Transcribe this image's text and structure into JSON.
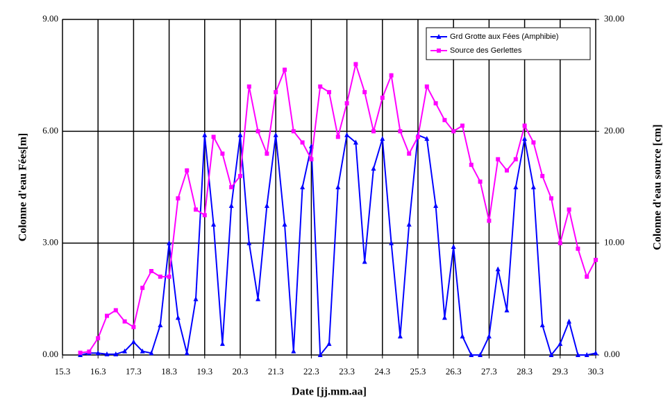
{
  "chart_data": {
    "type": "line",
    "xlabel": "Date [jj.mm.aa]",
    "ylabel": "Colonne d'eau Fées[m]",
    "y2label": "Colonne d'eau source [cm]",
    "xlim": [
      15,
      30
    ],
    "xticks": [
      {
        "value": 15,
        "label": "15.3"
      },
      {
        "value": 16,
        "label": "16.3"
      },
      {
        "value": 17,
        "label": "17.3"
      },
      {
        "value": 18,
        "label": "18.3"
      },
      {
        "value": 19,
        "label": "19.3"
      },
      {
        "value": 20,
        "label": "20.3"
      },
      {
        "value": 21,
        "label": "21.3"
      },
      {
        "value": 22,
        "label": "22.3"
      },
      {
        "value": 23,
        "label": "23.3"
      },
      {
        "value": 24,
        "label": "24.3"
      },
      {
        "value": 25,
        "label": "25.3"
      },
      {
        "value": 26,
        "label": "26.3"
      },
      {
        "value": 27,
        "label": "27.3"
      },
      {
        "value": 28,
        "label": "28.3"
      },
      {
        "value": 29,
        "label": "29.3"
      },
      {
        "value": 30,
        "label": "30.3"
      }
    ],
    "ylim": [
      0,
      9
    ],
    "yticks": [
      {
        "value": 0,
        "label": "0.00"
      },
      {
        "value": 3,
        "label": "3.00"
      },
      {
        "value": 6,
        "label": "6.00"
      },
      {
        "value": 9,
        "label": "9.00"
      }
    ],
    "y2lim": [
      0,
      30
    ],
    "y2ticks": [
      {
        "value": 0,
        "label": "0.00"
      },
      {
        "value": 10,
        "label": "10.00"
      },
      {
        "value": 20,
        "label": "20.00"
      },
      {
        "value": 30,
        "label": "30.00"
      }
    ],
    "grid": true,
    "legend": "upper right",
    "x": [
      15.5,
      15.75,
      16,
      16.25,
      16.5,
      16.75,
      17,
      17.25,
      17.5,
      17.75,
      18,
      18.25,
      18.5,
      18.75,
      19,
      19.25,
      19.5,
      19.75,
      20,
      20.25,
      20.5,
      20.75,
      21,
      21.25,
      21.5,
      21.75,
      22,
      22.25,
      22.5,
      22.75,
      23,
      23.25,
      23.5,
      23.75,
      24,
      24.25,
      24.5,
      24.75,
      25,
      25.25,
      25.5,
      25.75,
      26,
      26.25,
      26.5,
      26.75,
      27,
      27.25,
      27.5,
      27.75,
      28,
      28.25,
      28.5,
      28.75,
      29,
      29.25,
      29.5,
      29.75,
      30
    ],
    "series": [
      {
        "name": "Grd Grotte aux Fées (Amphibie)",
        "color": "#0000ff",
        "marker": "triangle",
        "values": [
          0,
          0.05,
          0.05,
          0.02,
          0.02,
          0.1,
          0.35,
          0.1,
          0.05,
          0.8,
          3.0,
          1.0,
          0.05,
          1.5,
          5.9,
          3.5,
          0.3,
          4.0,
          5.9,
          3.0,
          1.5,
          4.0,
          5.9,
          3.5,
          0.1,
          4.5,
          5.6,
          0,
          0.3,
          4.5,
          5.9,
          5.7,
          2.5,
          5.0,
          5.8,
          3.0,
          0.5,
          3.5,
          5.9,
          5.8,
          4.0,
          1.0,
          2.9,
          0.5,
          0,
          0,
          0.5,
          2.3,
          1.2,
          4.5,
          5.8,
          4.5,
          0.8,
          0,
          0.3,
          0.9,
          0,
          0,
          0.05
        ]
      },
      {
        "name": "Source des Gerlettes",
        "color": "#ff00ff",
        "marker": "square",
        "axis": "y2",
        "values": [
          0.2,
          0.3,
          1.5,
          3.5,
          4.0,
          3.0,
          2.5,
          6.0,
          7.5,
          7.0,
          7.0,
          14.0,
          16.5,
          13.0,
          12.5,
          19.5,
          18.0,
          15.0,
          16.0,
          24,
          20,
          18,
          23.5,
          25.5,
          20,
          19,
          17.5,
          24,
          23.5,
          19.5,
          22.5,
          26.0,
          23.5,
          20,
          23,
          25,
          20,
          18,
          19.5,
          24,
          22.5,
          21,
          20,
          20.5,
          17,
          15.5,
          12.0,
          17.5,
          16.5,
          17.5,
          20.5,
          19,
          16,
          14,
          10,
          13,
          9.5,
          7,
          8.5
        ]
      }
    ]
  }
}
